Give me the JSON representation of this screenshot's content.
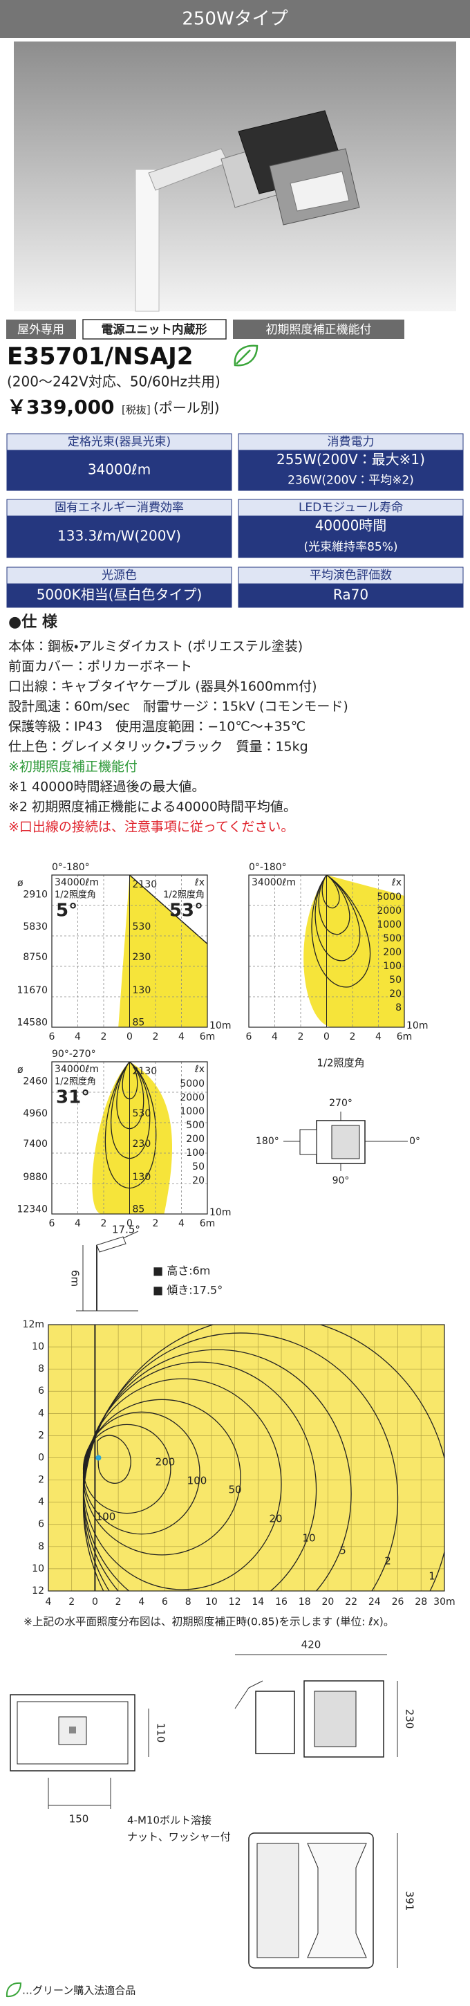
{
  "header": {
    "title": "250Wタイプ"
  },
  "badges": [
    "屋外専用",
    "電源ユニット内蔵形",
    "初期照度補正機能付"
  ],
  "product": {
    "model": "E35701/NSAJ2",
    "power_supply": "(200〜242V対応、50/60Hz共用)",
    "price": "￥339,000",
    "tax": "[税抜]",
    "note": "(ポール別)"
  },
  "specs": [
    {
      "label": "定格光束(器具光束)",
      "value": [
        "34000ℓm"
      ]
    },
    {
      "label": "消費電力",
      "value": [
        "255W(200V：最大※1)",
        "236W(200V：平均※2)"
      ]
    },
    {
      "label": "固有エネルギー消費効率",
      "value": [
        "133.3ℓm/W(200V)"
      ]
    },
    {
      "label": "LEDモジュール寿命",
      "value": [
        "40000時間",
        "(光束維持率85%)"
      ]
    },
    {
      "label": "光源色",
      "value": [
        "5000K相当(昼白色タイプ)"
      ]
    },
    {
      "label": "平均演色評価数",
      "value": [
        "Ra70"
      ]
    }
  ],
  "spec_heading": "●仕 様",
  "spec_lines": [
    "本体：鋼板・アルミダイカスト (ポリエステル塗装)",
    "前面カバー：ポリカーボネート",
    "口出線：キャブタイヤケーブル (器具外1600mm付)",
    "設計風速：60m/sec　耐雷サージ：15kV (コモンモード)",
    "保護等級：IP43　使用温度範囲：−10℃〜+35℃",
    "仕上色：グレイメタリック・ブラック　質量：15kg",
    "※初期照度補正機能付",
    "※1 40000時間経過後の最大値。",
    "※2 初期照度補正機能による40000時間平均値。",
    "※口出線の接続は、注意事項に従ってください。"
  ],
  "light_charts": [
    {
      "symbol": "ø",
      "plane": "0°-180°",
      "flux": "34000ℓm",
      "unit": "ℓx",
      "half_label": "1/2照度角",
      "angles": [
        "5°",
        "53°"
      ],
      "distances": [
        "2910",
        "5830",
        "8750",
        "11670",
        "14580"
      ],
      "levels": [
        "2130",
        "530",
        "230",
        "130",
        "85"
      ],
      "x_labels": [
        "6",
        "4",
        "2",
        "0",
        "2",
        "4",
        "6m"
      ],
      "depth": "10m"
    },
    {
      "plane": "0°-180°",
      "flux": "34000ℓm",
      "unit": "ℓx",
      "levels": [
        "5000",
        "2000",
        "1000",
        "500",
        "200",
        "100",
        "50",
        "20",
        "8"
      ],
      "x_labels": [
        "6",
        "4",
        "2",
        "0",
        "2",
        "4",
        "6m"
      ],
      "depth": "10m"
    },
    {
      "symbol": "ø",
      "plane": "90°-270°",
      "flux": "34000ℓm",
      "unit": "ℓx",
      "half_label": "1/2照度角",
      "angles": [
        "31°"
      ],
      "distances": [
        "2460",
        "4960",
        "7400",
        "9880",
        "12340"
      ],
      "inner_levels": [
        "2130",
        "530",
        "230",
        "130",
        "85"
      ],
      "levels": [
        "5000",
        "2000",
        "1000",
        "500",
        "200",
        "100",
        "50",
        "20"
      ],
      "x_labels": [
        "6",
        "4",
        "2",
        "0",
        "2",
        "4",
        "6m"
      ],
      "depth": "10m"
    }
  ],
  "half_angle_diagram": {
    "title": "1/2照度角",
    "angles": [
      "270°",
      "180°",
      "0°",
      "90°"
    ]
  },
  "installation": {
    "tilt_angle": "17.5°",
    "height": "6m",
    "legend": [
      "■ 高さ:6m",
      "■ 傾き:17.5°"
    ]
  },
  "isolux": {
    "y_labels": [
      "12m",
      "10",
      "8",
      "6",
      "4",
      "2",
      "0",
      "2",
      "4",
      "6",
      "8",
      "10",
      "12"
    ],
    "x_labels": [
      "4",
      "2",
      "0",
      "2",
      "4",
      "6",
      "8",
      "10",
      "12",
      "14",
      "16",
      "18",
      "20",
      "22",
      "24",
      "26",
      "28",
      "30m"
    ],
    "levels": [
      "200",
      "100",
      "50",
      "20",
      "10",
      "5",
      "2",
      "1",
      "100"
    ],
    "footnote": "※上記の水平面照度分布図は、初期照度補正時(0.85)を示します (単位: ℓx)。"
  },
  "dimensions": {
    "labels": [
      "420",
      "230",
      "110",
      "150",
      "391"
    ],
    "bolt_note": [
      "4-M10ボルト溶接",
      "ナット、ワッシャー付"
    ]
  },
  "green_note": "…グリーン購入法適合品"
}
